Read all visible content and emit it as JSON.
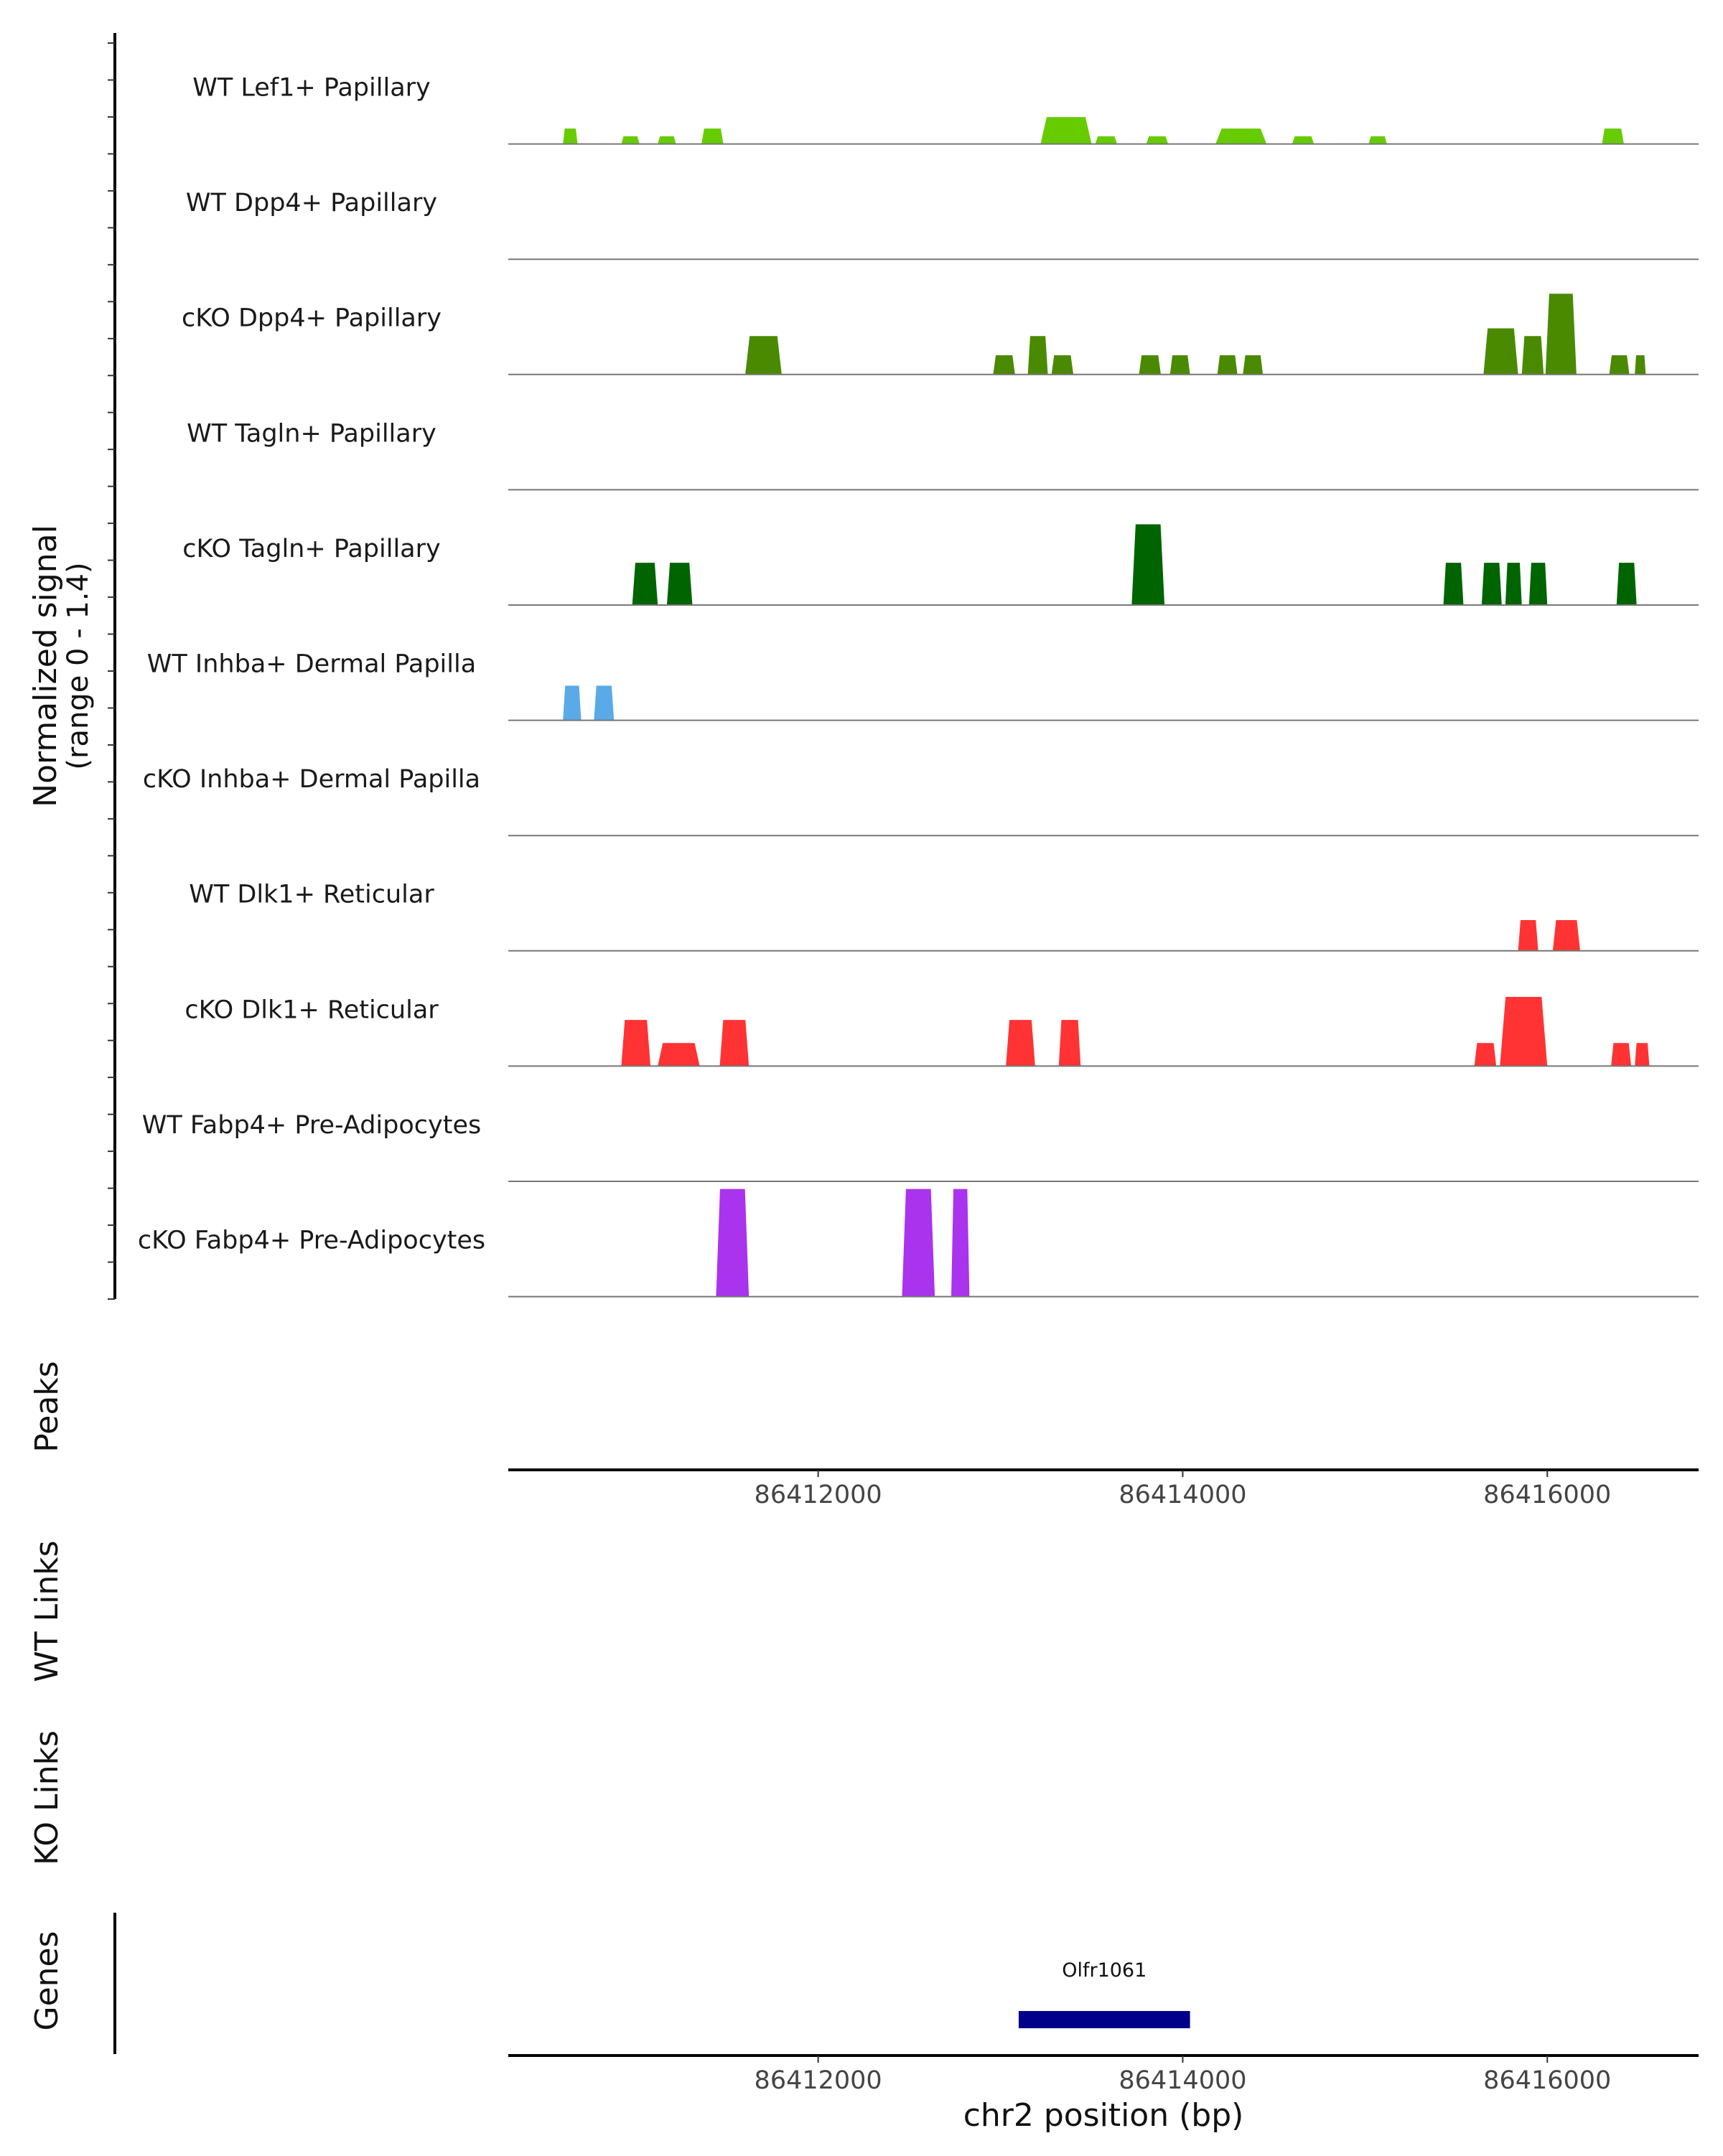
{
  "chart_data": {
    "type": "coverage",
    "region": {
      "chromosome": "chr2",
      "start": 86410300,
      "end": 86416830
    },
    "signal_axis": {
      "label_line1": "Normalized signal",
      "label_line2": "(range 0 - 1.4)",
      "range": [
        0,
        1.4
      ]
    },
    "tracks": [
      {
        "name": "WT Lef1+ Papillary",
        "color": "#66CC00",
        "peaks": [
          [
            86410600,
            86410680,
            0.2
          ],
          [
            86410920,
            86411020,
            0.1
          ],
          [
            86411120,
            86411220,
            0.1
          ],
          [
            86411360,
            86411480,
            0.2
          ],
          [
            86413220,
            86413500,
            0.35
          ],
          [
            86413520,
            86413640,
            0.1
          ],
          [
            86413800,
            86413920,
            0.1
          ],
          [
            86414180,
            86414460,
            0.2
          ],
          [
            86414600,
            86414720,
            0.1
          ],
          [
            86415020,
            86415120,
            0.1
          ],
          [
            86416300,
            86416420,
            0.2
          ]
        ]
      },
      {
        "name": "WT Dpp4+ Papillary",
        "color": "#4A8A00",
        "peaks": []
      },
      {
        "name": "cKO Dpp4+ Papillary",
        "color": "#4A8A00",
        "peaks": [
          [
            86411600,
            86411800,
            0.5
          ],
          [
            86412960,
            86413080,
            0.25
          ],
          [
            86413150,
            86413260,
            0.5
          ],
          [
            86413280,
            86413400,
            0.25
          ],
          [
            86413760,
            86413880,
            0.25
          ],
          [
            86413930,
            86414040,
            0.25
          ],
          [
            86414190,
            86414300,
            0.25
          ],
          [
            86414330,
            86414440,
            0.25
          ],
          [
            86415650,
            86415840,
            0.6
          ],
          [
            86415860,
            86415980,
            0.5
          ],
          [
            86415990,
            86416160,
            1.05
          ],
          [
            86416340,
            86416450,
            0.25
          ],
          [
            86416480,
            86416540,
            0.25
          ]
        ]
      },
      {
        "name": "WT Tagln+ Papillary",
        "color": "#006400",
        "peaks": []
      },
      {
        "name": "cKO Tagln+ Papillary",
        "color": "#006400",
        "peaks": [
          [
            86410980,
            86411120,
            0.55
          ],
          [
            86411170,
            86411310,
            0.55
          ],
          [
            86413720,
            86413900,
            1.05
          ],
          [
            86415430,
            86415540,
            0.55
          ],
          [
            86415640,
            86415750,
            0.55
          ],
          [
            86415770,
            86415860,
            0.55
          ],
          [
            86415900,
            86416000,
            0.55
          ],
          [
            86416380,
            86416490,
            0.55
          ]
        ]
      },
      {
        "name": "WT Inhba+ Dermal Papilla",
        "color": "#5AAAE8",
        "peaks": [
          [
            86410600,
            86410700,
            0.45
          ],
          [
            86410770,
            86410880,
            0.45
          ]
        ]
      },
      {
        "name": "cKO Inhba+ Dermal Papilla",
        "color": "#5AAAE8",
        "peaks": []
      },
      {
        "name": "WT Dlk1+ Reticular",
        "color": "#FF3333",
        "peaks": [
          [
            86415840,
            86415950,
            0.4
          ],
          [
            86416030,
            86416180,
            0.4
          ]
        ]
      },
      {
        "name": "cKO Dlk1+ Reticular",
        "color": "#FF3333",
        "peaks": [
          [
            86410920,
            86411080,
            0.6
          ],
          [
            86411120,
            86411350,
            0.3
          ],
          [
            86411460,
            86411620,
            0.6
          ],
          [
            86413030,
            86413190,
            0.6
          ],
          [
            86413320,
            86413440,
            0.6
          ],
          [
            86415600,
            86415720,
            0.3
          ],
          [
            86415740,
            86416000,
            0.9
          ],
          [
            86416350,
            86416460,
            0.3
          ],
          [
            86416480,
            86416560,
            0.3
          ]
        ]
      },
      {
        "name": "WT Fabp4+ Pre-Adipocytes",
        "color": "#AA33EE",
        "peaks": []
      },
      {
        "name": "cKO Fabp4+ Pre-Adipocytes",
        "color": "#AA33EE",
        "peaks": [
          [
            86411440,
            86411620,
            1.4
          ],
          [
            86412460,
            86412640,
            1.4
          ],
          [
            86412730,
            86412830,
            1.4
          ]
        ]
      }
    ],
    "panels": {
      "peaks": "Peaks",
      "wt_links": "WT Links",
      "ko_links": "KO Links",
      "genes": "Genes"
    },
    "genes": [
      {
        "name": "Olfr1061",
        "start": 86413100,
        "end": 86414040,
        "color": "#00008B"
      }
    ],
    "x_axis": {
      "ticks": [
        86412000,
        86414000,
        86416000
      ],
      "tick_labels": [
        "86412000",
        "86414000",
        "86416000"
      ],
      "label": "chr2 position (bp)"
    }
  }
}
